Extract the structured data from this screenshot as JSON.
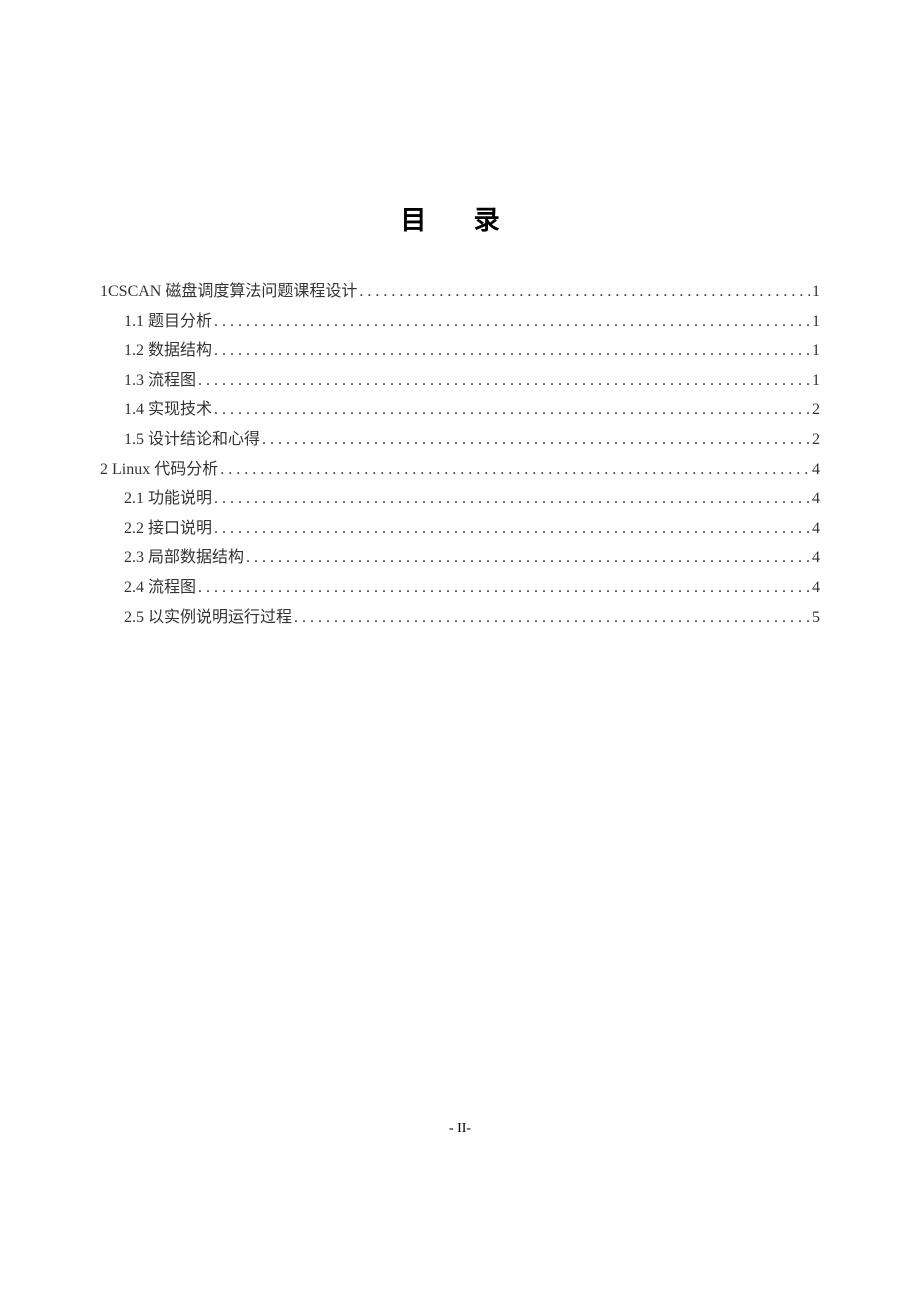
{
  "title": "目 录",
  "entries": [
    {
      "level": 1,
      "label": "1CSCAN 磁盘调度算法问题课程设计",
      "page": "1"
    },
    {
      "level": 2,
      "label": "1.1  题目分析",
      "page": "1"
    },
    {
      "level": 2,
      "label": "1.2  数据结构",
      "page": "1"
    },
    {
      "level": 2,
      "label": "1.3  流程图",
      "page": "1"
    },
    {
      "level": 2,
      "label": "1.4  实现技术",
      "page": "2"
    },
    {
      "level": 2,
      "label": "1.5  设计结论和心得",
      "page": "2"
    },
    {
      "level": 1,
      "label": "2 Linux 代码分析",
      "page": "4"
    },
    {
      "level": 2,
      "label": "2.1  功能说明",
      "page": "4"
    },
    {
      "level": 2,
      "label": "2.2  接口说明",
      "page": "4"
    },
    {
      "level": 2,
      "label": "2.3  局部数据结构",
      "page": "4"
    },
    {
      "level": 2,
      "label": "2.4  流程图",
      "page": "4"
    },
    {
      "level": 2,
      "label": "2.5  以实例说明运行过程",
      "page": "5"
    }
  ],
  "pageNumber": "- II-"
}
